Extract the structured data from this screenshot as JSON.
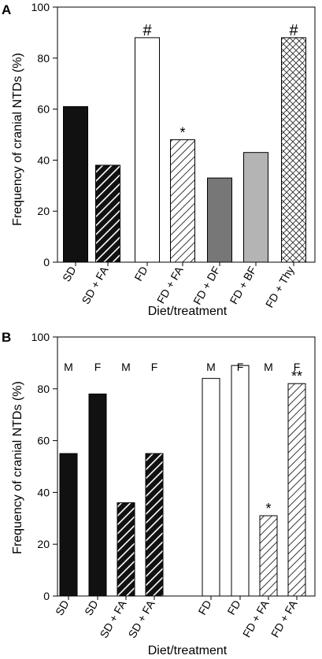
{
  "chart_data": [
    {
      "panel_label": "A",
      "type": "bar",
      "title": "",
      "xlabel": "Diet/treatment",
      "ylabel": "Frequency of cranial NTDs (%)",
      "ylim": [
        0,
        100
      ],
      "yticks": [
        "0",
        "20",
        "40",
        "60",
        "80",
        "100"
      ],
      "grid": false,
      "categories": [
        "SD",
        "SD + FA",
        "FD",
        "FD + FA",
        "FD + DF",
        "FD + BF",
        "FD + Thy"
      ],
      "values": [
        61,
        38,
        88,
        48,
        33,
        43,
        88
      ],
      "annotations": [
        "",
        "",
        "#",
        "*",
        "",
        "",
        "#"
      ],
      "fills": [
        "solid-black",
        "black-diagonal-white-stripes",
        "white",
        "white-diagonal-hatch",
        "dark-gray",
        "light-gray",
        "white-crosshatch"
      ],
      "colors": {
        "black": "#111111",
        "dark_gray": "#777777",
        "light_gray": "#b4b4b4",
        "white": "#ffffff"
      }
    },
    {
      "panel_label": "B",
      "type": "bar",
      "title": "",
      "xlabel": "Diet/treatment",
      "ylabel": "Frequency of cranial NTDs (%)",
      "ylim": [
        0,
        100
      ],
      "yticks": [
        "0",
        "20",
        "40",
        "60",
        "80",
        "100"
      ],
      "grid": false,
      "categories": [
        "SD",
        "SD",
        "SD + FA",
        "SD + FA",
        "FD",
        "FD",
        "FD + FA",
        "FD + FA"
      ],
      "sex_labels": [
        "M",
        "F",
        "M",
        "F",
        "M",
        "F",
        "M",
        "F"
      ],
      "values": [
        55,
        78,
        36,
        55,
        84,
        89,
        31,
        82
      ],
      "annotations": [
        "",
        "",
        "",
        "",
        "",
        "",
        "*",
        "**"
      ],
      "fills": [
        "solid-black",
        "solid-black",
        "black-diagonal-white-stripes",
        "black-diagonal-white-stripes",
        "white",
        "white",
        "white-diagonal-hatch",
        "white-diagonal-hatch"
      ],
      "colors": {
        "black": "#111111",
        "white": "#ffffff"
      }
    }
  ]
}
